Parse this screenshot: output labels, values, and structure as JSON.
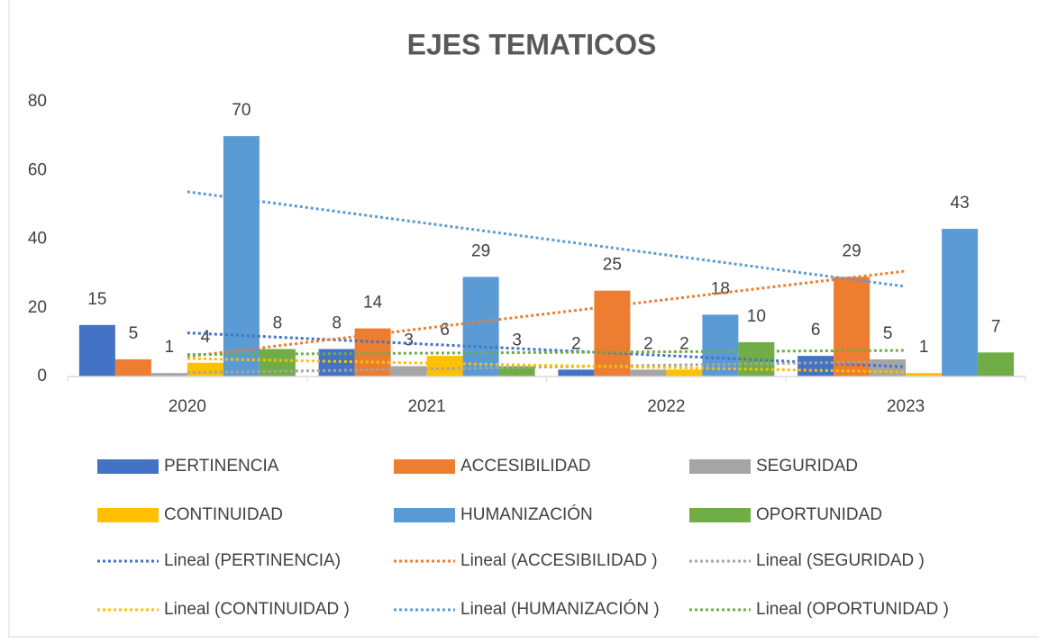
{
  "chart_data": {
    "type": "bar",
    "title": "EJES TEMATICOS",
    "categories": [
      "2020",
      "2021",
      "2022",
      "2023"
    ],
    "series": [
      {
        "name": "PERTINENCIA",
        "color": "#4472c4",
        "values": [
          15,
          8,
          2,
          6
        ]
      },
      {
        "name": "ACCESIBILIDAD",
        "color": "#ed7d31",
        "values": [
          5,
          14,
          25,
          29
        ]
      },
      {
        "name": "SEGURIDAD",
        "color": "#a5a5a5",
        "values": [
          1,
          3,
          2,
          5
        ]
      },
      {
        "name": "CONTINUIDAD",
        "color": "#ffc000",
        "values": [
          4,
          6,
          2,
          1
        ]
      },
      {
        "name": "HUMANIZACIÓN",
        "color": "#5b9bd5",
        "values": [
          70,
          29,
          18,
          43
        ]
      },
      {
        "name": "OPORTUNIDAD",
        "color": "#70ad47",
        "values": [
          8,
          3,
          10,
          7
        ]
      }
    ],
    "trendlines": [
      "Lineal (PERTINENCIA)",
      "Lineal (ACCESIBILIDAD )",
      "Lineal (SEGURIDAD )",
      "Lineal (CONTINUIDAD )",
      "Lineal (HUMANIZACIÓN )",
      "Lineal (OPORTUNIDAD )"
    ],
    "ylim": [
      0,
      80
    ],
    "yticks": [
      0,
      20,
      40,
      60,
      80
    ],
    "grid": false
  }
}
